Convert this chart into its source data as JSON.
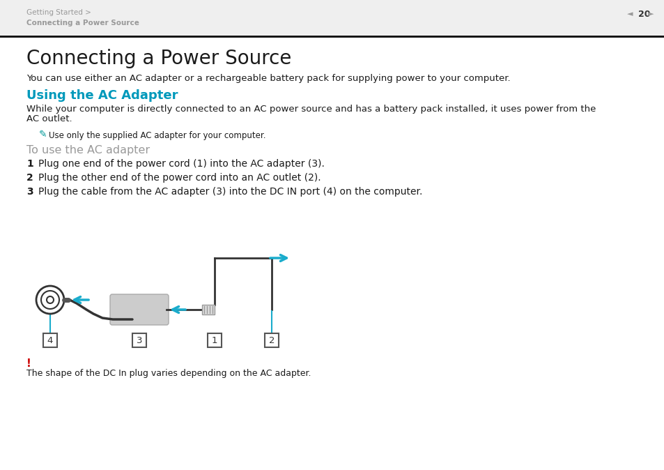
{
  "bg_color": "#ffffff",
  "header_bg": "#f2f2f2",
  "header_text1": "Getting Started >",
  "header_text2": "Connecting a Power Source",
  "header_text_color": "#999999",
  "page_num": "20",
  "separator_color": "#000000",
  "title": "Connecting a Power Source",
  "title_color": "#1a1a1a",
  "title_fontsize": 20,
  "subtitle": "Using the AC Adapter",
  "subtitle_color": "#0099bb",
  "subtitle_fontsize": 13,
  "body_text1": "You can use either an AC adapter or a rechargeable battery pack for supplying power to your computer.",
  "body_text2a": "While your computer is directly connected to an AC power source and has a battery pack installed, it uses power from the",
  "body_text2b": "AC outlet.",
  "note_text": "Use only the supplied AC adapter for your computer.",
  "subhead": "To use the AC adapter",
  "subhead_color": "#999999",
  "subhead_fontsize": 11.5,
  "step1": "Plug one end of the power cord (1) into the AC adapter (3).",
  "step2": "Plug the other end of the power cord into an AC outlet (2).",
  "step3": "Plug the cable from the AC adapter (3) into the DC IN port (4) on the computer.",
  "warning_color": "#cc0000",
  "warning_text": "The shape of the DC In plug varies depending on the AC adapter.",
  "arrow_color": "#1aaccc",
  "body_text_color": "#1a1a1a",
  "body_fontsize": 9.5,
  "step_fontsize": 10,
  "note_fontsize": 8.5,
  "note_icon_color": "#009999"
}
